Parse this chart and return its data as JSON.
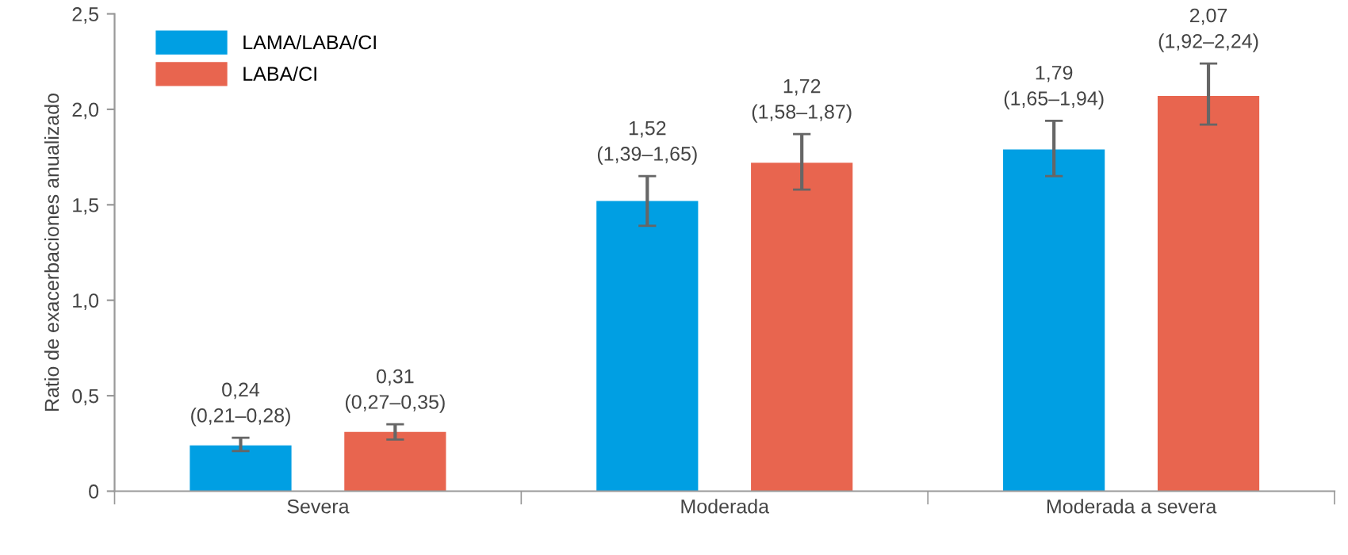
{
  "chart_data": {
    "type": "bar",
    "ylabel": "Ratio de exacerbaciones anualizado",
    "categories": [
      "Severa",
      "Moderada",
      "Moderada a severa"
    ],
    "series": [
      {
        "name": "LAMA/LABA/CI",
        "color": "#009fe3",
        "values": [
          0.24,
          1.52,
          1.79
        ],
        "errors": [
          [
            0.21,
            0.28
          ],
          [
            1.39,
            1.65
          ],
          [
            1.65,
            1.94
          ]
        ],
        "value_labels": [
          "0,24\n(0,21–0,28)",
          "1,52\n(1,39–1,65)",
          "1,79\n(1,65–1,94)"
        ]
      },
      {
        "name": "LABA/CI",
        "color": "#e8654f",
        "values": [
          0.31,
          1.72,
          2.07
        ],
        "errors": [
          [
            0.27,
            0.35
          ],
          [
            1.58,
            1.87
          ],
          [
            1.92,
            2.24
          ]
        ],
        "value_labels": [
          "0,31\n(0,27–0,35)",
          "1,72\n(1,58–1,87)",
          "2,07\n(1,92–2,24)"
        ]
      }
    ],
    "ylim": [
      0,
      2.5
    ],
    "yticks": [
      0,
      {
        "value": 0.5,
        "label": "0,5"
      },
      {
        "value": 1.0,
        "label": "1,0"
      },
      {
        "value": 1.5,
        "label": "1,5"
      },
      {
        "value": 2.0,
        "label": "2,0"
      },
      {
        "value": 2.5,
        "label": "2,5"
      }
    ],
    "grid": false,
    "legend": "top left"
  }
}
